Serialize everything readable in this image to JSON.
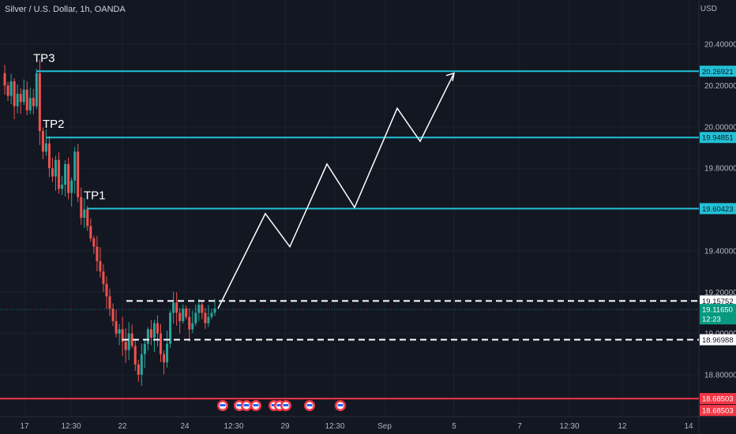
{
  "header": {
    "title": "Silver / U.S. Dollar, 1h, OANDA",
    "currency": "USD"
  },
  "chart_data": {
    "type": "line",
    "ylim": [
      18.7,
      20.48
    ],
    "y_ticks": [
      "20.40000",
      "20.20000",
      "20.00000",
      "19.80000",
      "19.40000",
      "19.20000",
      "19.00000",
      "18.80000"
    ],
    "x_ticks": [
      "17",
      "12:30",
      "22",
      "24",
      "12:30",
      "29",
      "12:30",
      "Sep",
      "5",
      "7",
      "12:30",
      "12",
      "14"
    ],
    "colors": {
      "background": "#131722",
      "grid": "#1e222d",
      "up": "#26a69a",
      "down": "#ef5350",
      "target_line": "#22c1d6",
      "stop_line": "#f23645",
      "projection": "#ffffff",
      "level_dashed": "#ffffff"
    },
    "levels": {
      "tp3": {
        "label": "TP3",
        "value": 20.26921,
        "tag": "20.26921"
      },
      "tp2": {
        "label": "TP2",
        "value": 19.94851,
        "tag": "19.94851"
      },
      "tp1": {
        "label": "TP1",
        "value": 19.60423,
        "tag": "19.60423"
      },
      "range_high": {
        "value": 19.15752,
        "tag": "19.15752"
      },
      "current": {
        "value": 19.1165,
        "tag": "19.11650",
        "countdown": "12:23"
      },
      "range_low": {
        "value": 18.96988,
        "tag": "18.96988"
      },
      "stop": {
        "value": 18.68503,
        "tag": "18.68503",
        "tag2": "18.68503"
      }
    },
    "projection_path": [
      19.12,
      19.58,
      19.42,
      19.82,
      19.61,
      20.09,
      19.93,
      20.26
    ],
    "price_path": [
      20.26,
      20.2,
      20.15,
      20.22,
      20.1,
      20.16,
      20.12,
      20.18,
      20.08,
      20.14,
      20.1,
      20.26,
      19.98,
      19.88,
      19.92,
      19.8,
      19.76,
      19.84,
      19.7,
      19.72,
      19.82,
      19.68,
      19.74,
      19.88,
      19.66,
      19.56,
      19.6,
      19.52,
      19.46,
      19.42,
      19.35,
      19.3,
      19.24,
      19.18,
      19.12,
      19.06,
      19.0,
      19.02,
      18.96,
      18.92,
      19.0,
      18.94,
      18.85,
      18.8,
      18.9,
      18.95,
      19.02,
      18.98,
      19.05,
      19.0,
      18.9,
      18.86,
      18.95,
      19.1,
      19.15,
      19.1,
      19.06,
      19.12,
      19.08,
      19.02,
      19.05,
      19.1,
      19.14,
      19.1,
      19.05,
      19.08,
      19.1,
      19.12
    ],
    "event_markers": 9
  }
}
